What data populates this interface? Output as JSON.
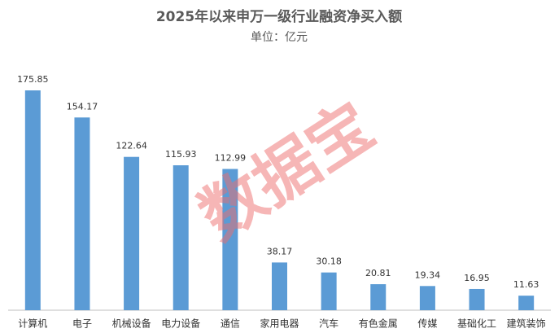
{
  "chart_data": {
    "type": "bar",
    "title": "2025年以来申万一级行业融资净买入额",
    "subtitle": "单位：亿元",
    "categories": [
      "计算机",
      "电子",
      "机械设备",
      "电力设备",
      "通信",
      "家用电器",
      "汽车",
      "有色金属",
      "传媒",
      "基础化工",
      "建筑装饰"
    ],
    "values": [
      175.85,
      154.17,
      122.64,
      115.93,
      112.99,
      38.17,
      30.18,
      20.81,
      19.34,
      16.95,
      11.63
    ],
    "color": "#5b9bd5",
    "watermark": "数据宝"
  }
}
